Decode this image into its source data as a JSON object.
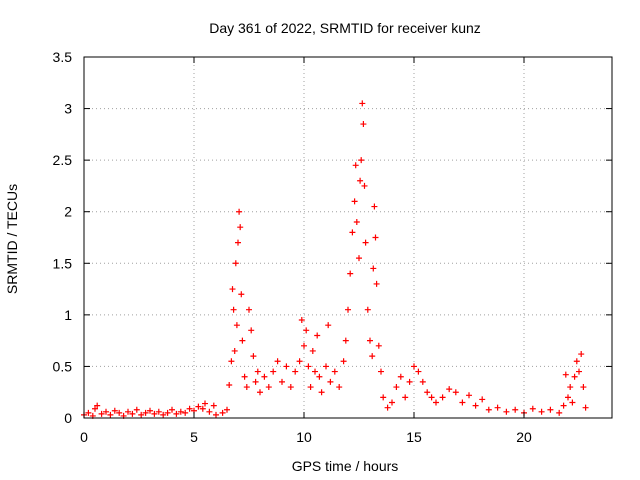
{
  "chart_data": {
    "type": "scatter",
    "title": "Day 361 of 2022, SRMTID for receiver kunz",
    "xlabel": "GPS time / hours",
    "ylabel": "SRMTID / TECUs",
    "xlim": [
      0,
      24
    ],
    "ylim": [
      0,
      3.5
    ],
    "grid": true,
    "marker": "+",
    "x_ticks": [
      0,
      5,
      10,
      15,
      20
    ],
    "x_tick_labels": [
      "0",
      "5",
      "10",
      "15",
      "20"
    ],
    "y_ticks": [
      0,
      0.5,
      1,
      1.5,
      2,
      2.5,
      3,
      3.5
    ],
    "y_tick_labels": [
      "0",
      "0.5",
      "1",
      "1.5",
      "2",
      "2.5",
      "3",
      "3.5"
    ],
    "colors": {
      "points": "#ff0000",
      "grid": "#a0a0a0",
      "axis": "#000000"
    },
    "series": [
      {
        "name": "SRMTID",
        "points": [
          [
            0.0,
            0.03
          ],
          [
            0.2,
            0.05
          ],
          [
            0.4,
            0.02
          ],
          [
            0.5,
            0.09
          ],
          [
            0.6,
            0.12
          ],
          [
            0.8,
            0.04
          ],
          [
            1.0,
            0.06
          ],
          [
            1.2,
            0.03
          ],
          [
            1.4,
            0.07
          ],
          [
            1.6,
            0.05
          ],
          [
            1.8,
            0.02
          ],
          [
            2.0,
            0.06
          ],
          [
            2.2,
            0.04
          ],
          [
            2.4,
            0.08
          ],
          [
            2.6,
            0.03
          ],
          [
            2.8,
            0.05
          ],
          [
            3.0,
            0.07
          ],
          [
            3.2,
            0.04
          ],
          [
            3.4,
            0.06
          ],
          [
            3.6,
            0.03
          ],
          [
            3.8,
            0.05
          ],
          [
            4.0,
            0.08
          ],
          [
            4.2,
            0.04
          ],
          [
            4.4,
            0.06
          ],
          [
            4.6,
            0.05
          ],
          [
            4.8,
            0.09
          ],
          [
            5.0,
            0.07
          ],
          [
            5.2,
            0.11
          ],
          [
            5.4,
            0.09
          ],
          [
            5.5,
            0.14
          ],
          [
            5.7,
            0.06
          ],
          [
            5.9,
            0.12
          ],
          [
            6.0,
            0.03
          ],
          [
            6.3,
            0.05
          ],
          [
            6.5,
            0.08
          ],
          [
            6.6,
            0.32
          ],
          [
            6.7,
            0.55
          ],
          [
            6.75,
            1.25
          ],
          [
            6.8,
            1.05
          ],
          [
            6.85,
            0.65
          ],
          [
            6.9,
            1.5
          ],
          [
            6.95,
            0.9
          ],
          [
            7.0,
            1.7
          ],
          [
            7.05,
            2.0
          ],
          [
            7.1,
            1.85
          ],
          [
            7.15,
            1.2
          ],
          [
            7.2,
            0.75
          ],
          [
            7.3,
            0.4
          ],
          [
            7.4,
            0.3
          ],
          [
            7.5,
            1.05
          ],
          [
            7.6,
            0.85
          ],
          [
            7.7,
            0.6
          ],
          [
            7.8,
            0.35
          ],
          [
            7.9,
            0.45
          ],
          [
            8.0,
            0.25
          ],
          [
            8.2,
            0.4
          ],
          [
            8.4,
            0.3
          ],
          [
            8.6,
            0.45
          ],
          [
            8.8,
            0.55
          ],
          [
            9.0,
            0.35
          ],
          [
            9.2,
            0.5
          ],
          [
            9.4,
            0.3
          ],
          [
            9.6,
            0.45
          ],
          [
            9.8,
            0.55
          ],
          [
            9.9,
            0.95
          ],
          [
            10.0,
            0.7
          ],
          [
            10.1,
            0.85
          ],
          [
            10.2,
            0.5
          ],
          [
            10.3,
            0.3
          ],
          [
            10.4,
            0.65
          ],
          [
            10.5,
            0.45
          ],
          [
            10.6,
            0.8
          ],
          [
            10.7,
            0.4
          ],
          [
            10.8,
            0.25
          ],
          [
            11.0,
            0.5
          ],
          [
            11.1,
            0.9
          ],
          [
            11.2,
            0.35
          ],
          [
            11.4,
            0.45
          ],
          [
            11.6,
            0.3
          ],
          [
            11.8,
            0.55
          ],
          [
            11.9,
            0.75
          ],
          [
            12.0,
            1.05
          ],
          [
            12.1,
            1.4
          ],
          [
            12.2,
            1.8
          ],
          [
            12.3,
            2.1
          ],
          [
            12.35,
            2.45
          ],
          [
            12.4,
            1.9
          ],
          [
            12.5,
            1.55
          ],
          [
            12.55,
            2.3
          ],
          [
            12.6,
            2.5
          ],
          [
            12.65,
            3.05
          ],
          [
            12.7,
            2.85
          ],
          [
            12.75,
            2.25
          ],
          [
            12.8,
            1.7
          ],
          [
            12.9,
            1.05
          ],
          [
            13.0,
            0.75
          ],
          [
            13.1,
            0.6
          ],
          [
            13.15,
            1.45
          ],
          [
            13.2,
            2.05
          ],
          [
            13.25,
            1.75
          ],
          [
            13.3,
            1.3
          ],
          [
            13.4,
            0.7
          ],
          [
            13.5,
            0.45
          ],
          [
            13.6,
            0.2
          ],
          [
            13.8,
            0.1
          ],
          [
            14.0,
            0.15
          ],
          [
            14.2,
            0.3
          ],
          [
            14.4,
            0.4
          ],
          [
            14.6,
            0.2
          ],
          [
            14.8,
            0.35
          ],
          [
            15.0,
            0.5
          ],
          [
            15.2,
            0.45
          ],
          [
            15.4,
            0.35
          ],
          [
            15.6,
            0.25
          ],
          [
            15.8,
            0.2
          ],
          [
            16.0,
            0.15
          ],
          [
            16.3,
            0.2
          ],
          [
            16.6,
            0.28
          ],
          [
            16.9,
            0.25
          ],
          [
            17.2,
            0.15
          ],
          [
            17.5,
            0.22
          ],
          [
            17.8,
            0.12
          ],
          [
            18.1,
            0.18
          ],
          [
            18.4,
            0.08
          ],
          [
            18.8,
            0.1
          ],
          [
            19.2,
            0.06
          ],
          [
            19.6,
            0.08
          ],
          [
            20.0,
            0.05
          ],
          [
            20.4,
            0.09
          ],
          [
            20.8,
            0.06
          ],
          [
            21.2,
            0.08
          ],
          [
            21.6,
            0.05
          ],
          [
            21.8,
            0.12
          ],
          [
            21.9,
            0.42
          ],
          [
            22.0,
            0.2
          ],
          [
            22.1,
            0.3
          ],
          [
            22.2,
            0.15
          ],
          [
            22.3,
            0.4
          ],
          [
            22.4,
            0.55
          ],
          [
            22.5,
            0.45
          ],
          [
            22.6,
            0.62
          ],
          [
            22.7,
            0.3
          ],
          [
            22.8,
            0.1
          ]
        ]
      }
    ]
  }
}
